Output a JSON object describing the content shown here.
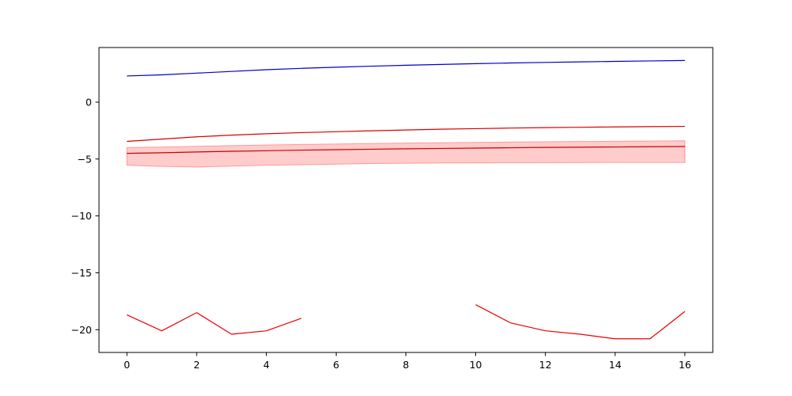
{
  "chart_data": {
    "type": "line",
    "title": "",
    "xlabel": "",
    "ylabel": "",
    "xlim": [
      -0.8,
      16.8
    ],
    "ylim": [
      -22.0,
      4.8
    ],
    "xticks": [
      0,
      2,
      4,
      6,
      8,
      10,
      12,
      14,
      16
    ],
    "yticks": [
      -20,
      -15,
      -10,
      -5,
      0
    ],
    "grid": false,
    "legend": "none",
    "series": [
      {
        "color": "#0000cc",
        "x": [
          0,
          1,
          2,
          3,
          4,
          5,
          6,
          7,
          8,
          9,
          10,
          11,
          12,
          13,
          14,
          15,
          16
        ],
        "y": [
          2.3,
          2.4,
          2.55,
          2.7,
          2.85,
          2.97,
          3.07,
          3.16,
          3.24,
          3.31,
          3.38,
          3.44,
          3.49,
          3.54,
          3.58,
          3.62,
          3.66
        ]
      },
      {
        "color": "#dd0000",
        "x": [
          0,
          1,
          2,
          3,
          4,
          5,
          6,
          7,
          8,
          9,
          10,
          11,
          12,
          13,
          14,
          15,
          16
        ],
        "y": [
          -3.45,
          -3.25,
          -3.05,
          -2.9,
          -2.78,
          -2.68,
          -2.6,
          -2.52,
          -2.45,
          -2.38,
          -2.33,
          -2.28,
          -2.24,
          -2.21,
          -2.18,
          -2.15,
          -2.13
        ]
      },
      {
        "color": "#cc0000",
        "x": [
          0,
          1,
          2,
          3,
          4,
          5,
          6,
          7,
          8,
          9,
          10,
          11,
          12,
          13,
          14,
          15,
          16
        ],
        "y": [
          -4.5,
          -4.45,
          -4.38,
          -4.32,
          -4.27,
          -4.22,
          -4.18,
          -4.14,
          -4.1,
          -4.07,
          -4.04,
          -4.01,
          -3.98,
          -3.96,
          -3.94,
          -3.92,
          -3.9
        ],
        "band_lower": [
          -5.55,
          -5.65,
          -5.7,
          -5.62,
          -5.55,
          -5.5,
          -5.45,
          -5.4,
          -5.37,
          -5.35,
          -5.34,
          -5.33,
          -5.32,
          -5.31,
          -5.3,
          -5.3,
          -5.3
        ],
        "band_upper": [
          -4.0,
          -3.95,
          -3.88,
          -3.82,
          -3.77,
          -3.72,
          -3.68,
          -3.64,
          -3.6,
          -3.57,
          -3.54,
          -3.51,
          -3.48,
          -3.46,
          -3.44,
          -3.42,
          -3.4
        ],
        "band_color": "#ff9999"
      },
      {
        "color": "#ee0000",
        "x": [
          0,
          1,
          2,
          3,
          4,
          5,
          6,
          7,
          8,
          9,
          10,
          11,
          12,
          13,
          14,
          15,
          16
        ],
        "y": [
          -18.7,
          -20.1,
          -18.5,
          -20.4,
          -20.1,
          -19.0,
          null,
          null,
          null,
          null,
          -17.8,
          -19.4,
          -20.1,
          -20.4,
          -20.8,
          -20.8,
          -18.4
        ]
      }
    ]
  }
}
